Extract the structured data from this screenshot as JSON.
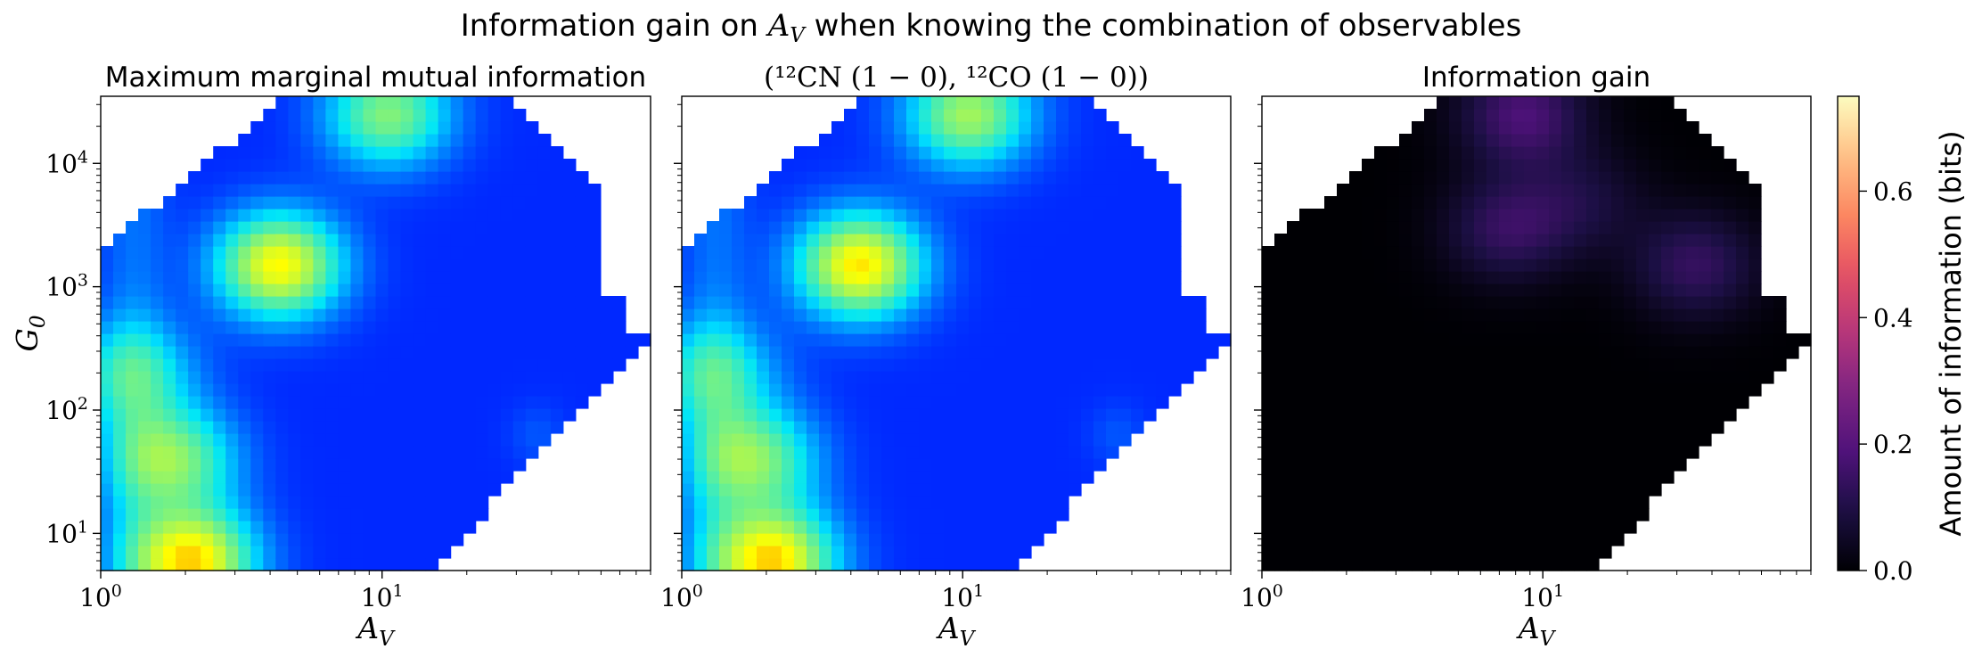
{
  "figure": {
    "suptitle_prefix": "Information gain on ",
    "suptitle_math": "A",
    "suptitle_math_sub": "V",
    "suptitle_suffix": " when knowing the combination of observables"
  },
  "colors": {
    "jet_low": "#0000d8",
    "jet_high": "#e6ff6a",
    "magma_low": "#000004",
    "magma_high": "#fcfdbf"
  },
  "chart_data": [
    {
      "type": "heatmap",
      "title": "Maximum marginal mutual information",
      "xlabel": "A_V",
      "ylabel": "G_0",
      "x_scale": "log",
      "y_scale": "log",
      "xlim": [
        1,
        90
      ],
      "ylim": [
        5,
        35000
      ],
      "x_ticks": [
        "10^0",
        "10^1"
      ],
      "y_ticks": [
        "10^1",
        "10^2",
        "10^3",
        "10^4"
      ],
      "colormap": "jet",
      "value_range": [
        0,
        0.75
      ],
      "hotspots": [
        {
          "A_V": 4.3,
          "G_0": 1500,
          "value": 0.58
        },
        {
          "A_V": 2.1,
          "G_0": 6,
          "value": 0.62
        },
        {
          "A_V": 1.8,
          "G_0": 40,
          "value": 0.42
        },
        {
          "A_V": 10.5,
          "G_0": 25000,
          "value": 0.42
        },
        {
          "A_V": 1.3,
          "G_0": 200,
          "value": 0.3
        }
      ]
    },
    {
      "type": "heatmap",
      "title": "(¹²CN (1 − 0), ¹²CO (1 − 0))",
      "xlabel": "A_V",
      "x_scale": "log",
      "y_scale": "log",
      "xlim": [
        1,
        90
      ],
      "ylim": [
        5,
        35000
      ],
      "x_ticks": [
        "10^0",
        "10^1"
      ],
      "colormap": "jet",
      "value_range": [
        0,
        0.75
      ],
      "hotspots": [
        {
          "A_V": 4.3,
          "G_0": 1500,
          "value": 0.6
        },
        {
          "A_V": 2.1,
          "G_0": 6,
          "value": 0.62
        },
        {
          "A_V": 1.8,
          "G_0": 40,
          "value": 0.42
        },
        {
          "A_V": 10.5,
          "G_0": 25000,
          "value": 0.46
        },
        {
          "A_V": 1.3,
          "G_0": 200,
          "value": 0.3
        }
      ]
    },
    {
      "type": "heatmap",
      "title": "Information gain",
      "xlabel": "A_V",
      "x_scale": "log",
      "y_scale": "log",
      "xlim": [
        1,
        90
      ],
      "ylim": [
        5,
        35000
      ],
      "x_ticks": [
        "10^0",
        "10^1"
      ],
      "colormap": "magma",
      "value_range": [
        0,
        0.75
      ],
      "colorbar_label": "Amount of information (bits)",
      "colorbar_ticks": [
        "0.0",
        "0.2",
        "0.4",
        "0.6"
      ],
      "colorbar_tick_values": [
        0.0,
        0.2,
        0.4,
        0.6
      ],
      "hotspots": [
        {
          "A_V": 8.5,
          "G_0": 25000,
          "value": 0.18
        },
        {
          "A_V": 7.5,
          "G_0": 3000,
          "value": 0.14
        },
        {
          "A_V": 35,
          "G_0": 1500,
          "value": 0.14
        },
        {
          "A_V": 14,
          "G_0": 5000,
          "value": 0.08
        }
      ]
    }
  ]
}
